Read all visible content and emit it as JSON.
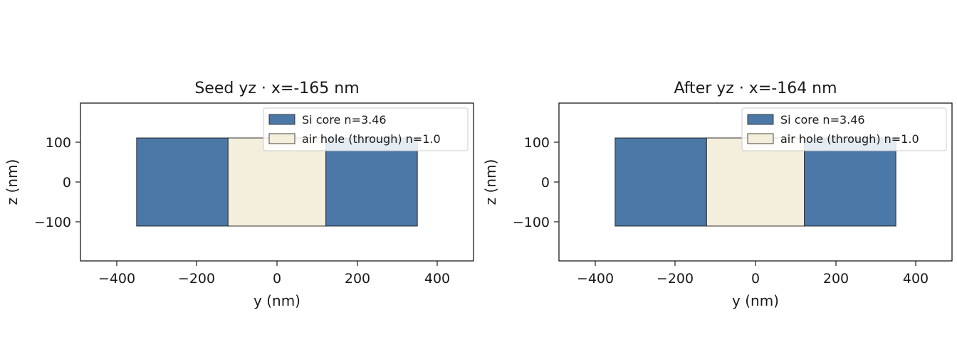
{
  "figure": {
    "panels": [
      {
        "title": "Seed yz  ·  x=-165 nm",
        "xlabel": "y (nm)",
        "ylabel": "z (nm)",
        "legend": [
          "Si core  n=3.46",
          "air hole (through)  n=1.0"
        ],
        "xticks": [
          "−400",
          "−200",
          "0",
          "200",
          "400"
        ],
        "yticks": [
          "100",
          "0",
          "−100"
        ]
      },
      {
        "title": "After yz  ·  x=-164 nm",
        "xlabel": "y (nm)",
        "ylabel": "z (nm)",
        "legend": [
          "Si core  n=3.46",
          "air hole (through)  n=1.0"
        ],
        "xticks": [
          "−400",
          "−200",
          "0",
          "200",
          "400"
        ],
        "yticks": [
          "100",
          "0",
          "−100"
        ]
      }
    ]
  },
  "colors": {
    "si_core": "#4c78a8",
    "air_hole": "#f3efdc",
    "edge": "#1a1a1a"
  },
  "structure": {
    "x_range": [
      -490,
      490
    ],
    "z_range": [
      -197,
      197
    ],
    "regions": [
      {
        "kind": "si_core",
        "y": [
          -350,
          -122
        ],
        "z": [
          -110,
          110
        ]
      },
      {
        "kind": "air_hole",
        "y": [
          -122,
          122
        ],
        "z": [
          -110,
          110
        ]
      },
      {
        "kind": "si_core",
        "y": [
          122,
          350
        ],
        "z": [
          -110,
          110
        ]
      }
    ]
  }
}
